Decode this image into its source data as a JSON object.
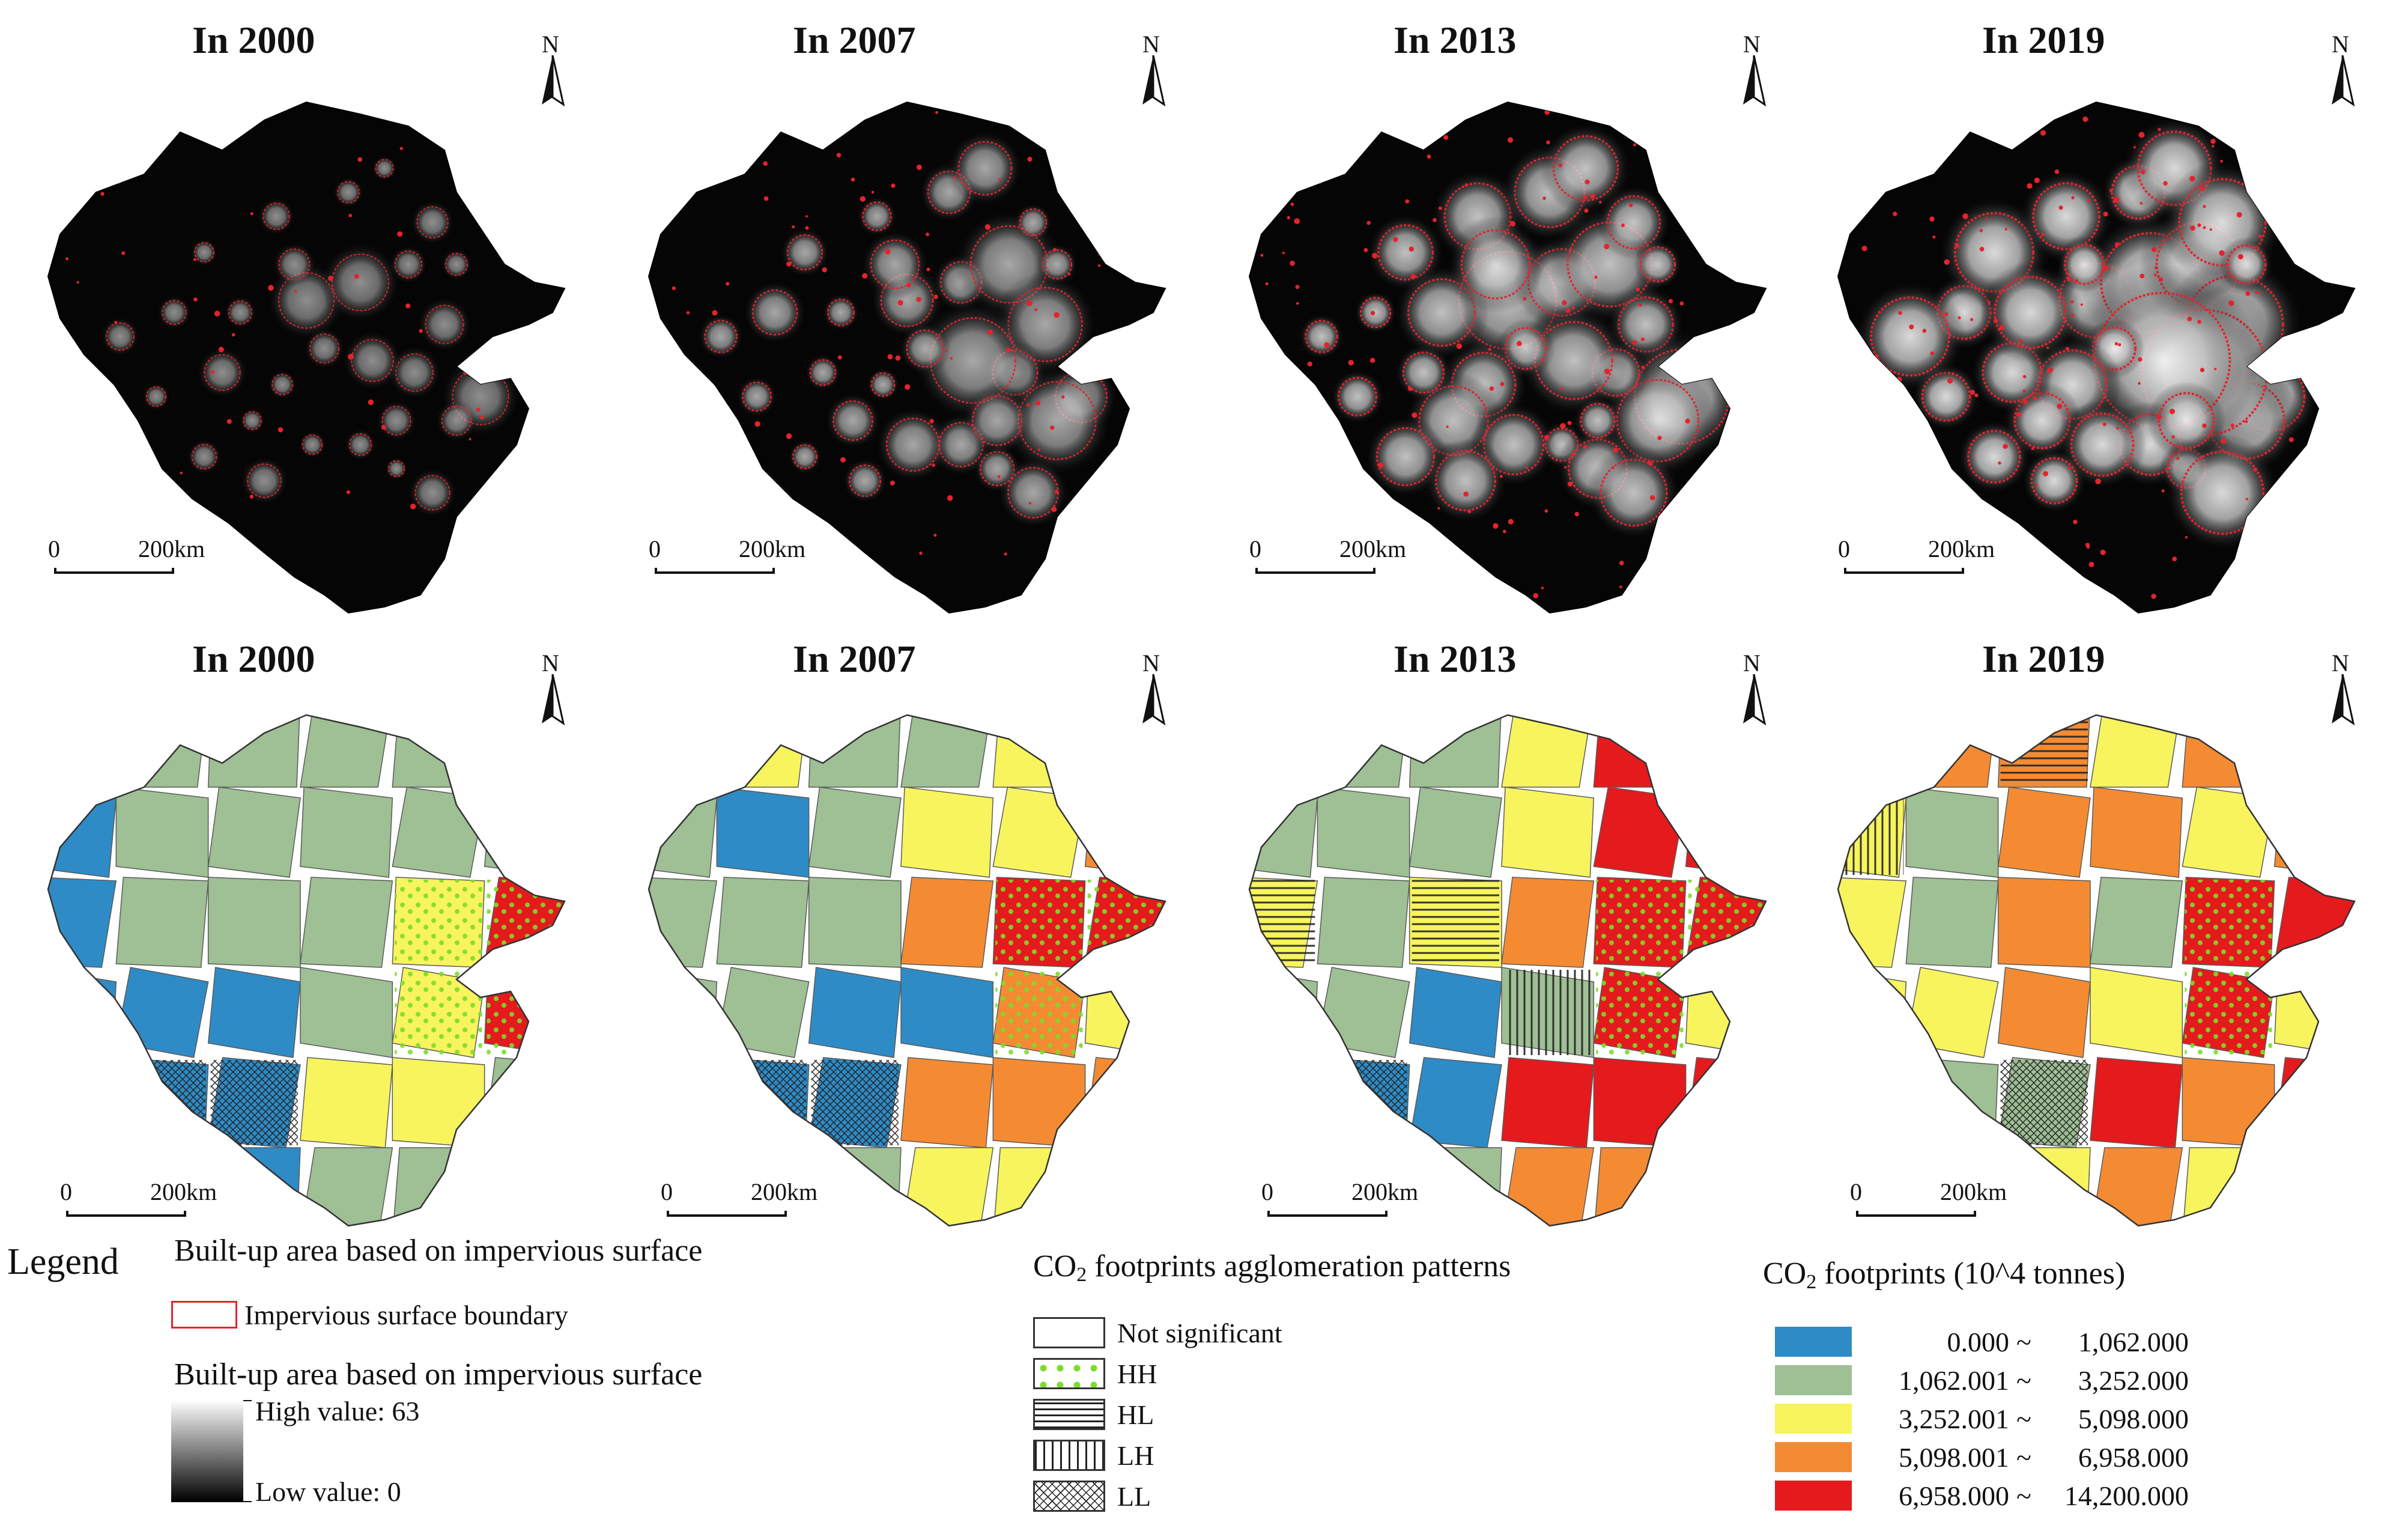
{
  "panels_top": [
    {
      "title": "In 2000"
    },
    {
      "title": "In 2007"
    },
    {
      "title": "In 2013"
    },
    {
      "title": "In 2019"
    }
  ],
  "panels_bottom": [
    {
      "title": "In 2000"
    },
    {
      "title": "In 2007"
    },
    {
      "title": "In 2013"
    },
    {
      "title": "In 2019"
    }
  ],
  "north_label": "N",
  "scale_bar": {
    "zero": "0",
    "distance": "200km"
  },
  "legend": {
    "title": "Legend",
    "impervious": {
      "heading": "Built-up area based on impervious surface",
      "boundary_label": "Impervious surface boundary",
      "boundary_color": "#e4232b",
      "ramp_heading": "Built-up area based on impervious surface",
      "high_label": "High value: 63",
      "low_label": "Low value: 0"
    },
    "patterns": {
      "heading_prefix": "CO",
      "heading_sub": "2",
      "heading_suffix": " footprints agglomeration patterns",
      "items": [
        {
          "label": "Not significant",
          "pattern": "none"
        },
        {
          "label": "HH",
          "pattern": "green-dots"
        },
        {
          "label": "HL",
          "pattern": "horizontal-lines"
        },
        {
          "label": "LH",
          "pattern": "vertical-lines"
        },
        {
          "label": "LL",
          "pattern": "cross-hatch"
        }
      ]
    },
    "footprints": {
      "heading_prefix": "CO",
      "heading_sub": "2",
      "heading_suffix": " footprints (10^4 tonnes)",
      "classes": [
        {
          "from": "0.000",
          "sep": "~",
          "to": "1,062.000",
          "color": "#2e8bc6"
        },
        {
          "from": "1,062.001",
          "sep": "~",
          "to": "3,252.000",
          "color": "#9fbf94"
        },
        {
          "from": "3,252.001",
          "sep": "~",
          "to": "5,098.000",
          "color": "#f7f45e"
        },
        {
          "from": "5,098.001",
          "sep": "~",
          "to": "6,958.000",
          "color": "#f48b33"
        },
        {
          "from": "6,958.000",
          "sep": "~",
          "to": "14,200.000",
          "color": "#e51a1d"
        }
      ]
    }
  }
}
